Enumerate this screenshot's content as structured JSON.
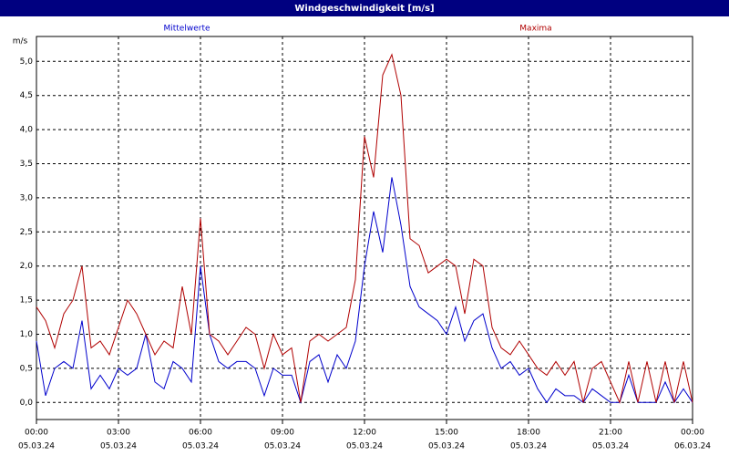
{
  "chart_data": {
    "type": "line",
    "title": "Windgeschwindigkeit [m/s]",
    "y_label": "m/s",
    "x": [
      0,
      20,
      40,
      60,
      80,
      100,
      120,
      140,
      160,
      180,
      200,
      220,
      240,
      260,
      280,
      300,
      320,
      340,
      360,
      380,
      400,
      420,
      440,
      460,
      480,
      500,
      520,
      540,
      560,
      580,
      600,
      620,
      640,
      660,
      680,
      700,
      720,
      740,
      760,
      780,
      800,
      820,
      840,
      860,
      880,
      900,
      920,
      940,
      960,
      980,
      1000,
      1020,
      1040,
      1060,
      1080,
      1100,
      1120,
      1140,
      1160,
      1180,
      1200,
      1220,
      1240,
      1260,
      1280,
      1300,
      1320,
      1340,
      1360,
      1380,
      1400,
      1420,
      1440
    ],
    "xlim": [
      0,
      1440
    ],
    "xticks": [
      {
        "value": 0,
        "label": "00:00"
      },
      {
        "value": 180,
        "label": "03:00"
      },
      {
        "value": 360,
        "label": "06:00"
      },
      {
        "value": 540,
        "label": "09:00"
      },
      {
        "value": 720,
        "label": "12:00"
      },
      {
        "value": 900,
        "label": "15:00"
      },
      {
        "value": 1080,
        "label": "18:00"
      },
      {
        "value": 1260,
        "label": "21:00"
      },
      {
        "value": 1440,
        "label": "00:00"
      }
    ],
    "xtick_dates": [
      "05.03.24",
      "05.03.24",
      "05.03.24",
      "05.03.24",
      "05.03.24",
      "05.03.24",
      "05.03.24",
      "05.03.24",
      "06.03.24"
    ],
    "ylim": [
      -0.25,
      5.365
    ],
    "yticks": [
      {
        "value": 0,
        "label": "0,0"
      },
      {
        "value": 0.5,
        "label": "0,5"
      },
      {
        "value": 1,
        "label": "1,0"
      },
      {
        "value": 1.5,
        "label": "1,5"
      },
      {
        "value": 2,
        "label": "2,0"
      },
      {
        "value": 2.5,
        "label": "2,5"
      },
      {
        "value": 3,
        "label": "3,0"
      },
      {
        "value": 3.5,
        "label": "3,5"
      },
      {
        "value": 4,
        "label": "4,0"
      },
      {
        "value": 4.5,
        "label": "4,5"
      },
      {
        "value": 5,
        "label": "5,0"
      }
    ],
    "grid": true,
    "series": [
      {
        "name": "Mittelwerte",
        "color": "#0000cc",
        "values": [
          0.9,
          0.1,
          0.5,
          0.6,
          0.5,
          1.2,
          0.2,
          0.4,
          0.2,
          0.5,
          0.4,
          0.5,
          1.0,
          0.3,
          0.2,
          0.6,
          0.5,
          0.3,
          2.0,
          1.0,
          0.6,
          0.5,
          0.6,
          0.6,
          0.5,
          0.1,
          0.5,
          0.4,
          0.4,
          0.0,
          0.6,
          0.7,
          0.3,
          0.7,
          0.5,
          0.9,
          2.0,
          2.8,
          2.2,
          3.3,
          2.6,
          1.7,
          1.4,
          1.3,
          1.2,
          1.0,
          1.4,
          0.9,
          1.2,
          1.3,
          0.8,
          0.5,
          0.6,
          0.4,
          0.5,
          0.2,
          0.0,
          0.2,
          0.1,
          0.1,
          0.0,
          0.2,
          0.1,
          0.0,
          0.0,
          0.4,
          0.0,
          0.0,
          0.0,
          0.3,
          0.0,
          0.2,
          0.0
        ]
      },
      {
        "name": "Maxima",
        "color": "#b00000",
        "values": [
          1.4,
          1.2,
          0.8,
          1.3,
          1.5,
          2.0,
          0.8,
          0.9,
          0.7,
          1.1,
          1.5,
          1.3,
          1.0,
          0.7,
          0.9,
          0.8,
          1.7,
          1.0,
          2.7,
          1.0,
          0.9,
          0.7,
          0.9,
          1.1,
          1.0,
          0.5,
          1.0,
          0.7,
          0.8,
          0.0,
          0.9,
          1.0,
          0.9,
          1.0,
          1.1,
          1.8,
          3.9,
          3.3,
          4.8,
          5.1,
          4.5,
          2.4,
          2.3,
          1.9,
          2.0,
          2.1,
          2.0,
          1.3,
          2.1,
          2.0,
          1.1,
          0.8,
          0.7,
          0.9,
          0.7,
          0.5,
          0.4,
          0.6,
          0.4,
          0.6,
          0.0,
          0.5,
          0.6,
          0.3,
          0.0,
          0.6,
          0.0,
          0.6,
          0.0,
          0.6,
          0.0,
          0.6,
          0.0
        ]
      }
    ]
  }
}
